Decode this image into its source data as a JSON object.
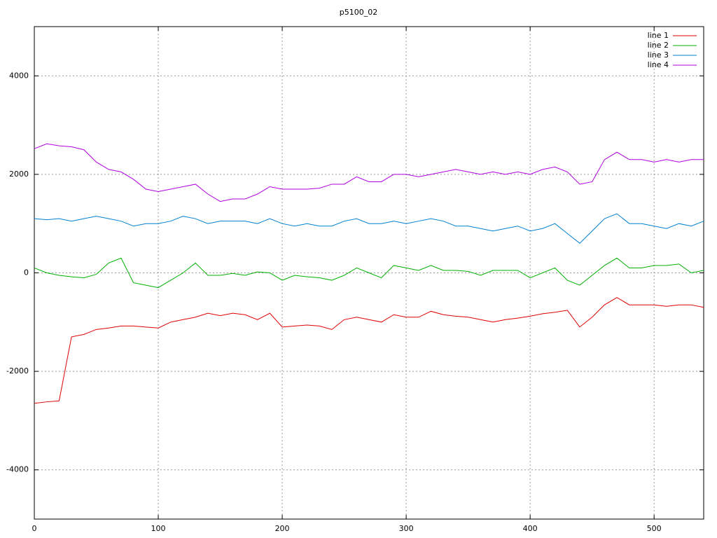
{
  "chart_data": {
    "type": "line",
    "title": "p5100_02",
    "x": [
      0,
      10,
      20,
      30,
      40,
      50,
      60,
      70,
      80,
      90,
      100,
      110,
      120,
      130,
      140,
      150,
      160,
      170,
      180,
      190,
      200,
      210,
      220,
      230,
      240,
      250,
      260,
      270,
      280,
      290,
      300,
      310,
      320,
      330,
      340,
      350,
      360,
      370,
      380,
      390,
      400,
      410,
      420,
      430,
      440,
      450,
      460,
      470,
      480,
      490,
      500,
      510,
      520,
      530,
      540
    ],
    "series": [
      {
        "name": "line 1",
        "color": "#e00000",
        "values": [
          -2650,
          -2620,
          -2600,
          -1300,
          -1250,
          -1150,
          -1120,
          -1080,
          -1080,
          -1100,
          -1120,
          -1000,
          -950,
          -900,
          -820,
          -870,
          -820,
          -850,
          -950,
          -820,
          -1100,
          -1080,
          -1060,
          -1080,
          -1150,
          -950,
          -900,
          -950,
          -1000,
          -850,
          -900,
          -900,
          -780,
          -850,
          -880,
          -900,
          -950,
          -1000,
          -950,
          -920,
          -880,
          -830,
          -800,
          -760,
          -1100,
          -900,
          -650,
          -500,
          -650,
          -650,
          -650,
          -680,
          -650,
          -650,
          -700
        ]
      },
      {
        "name": "line 2",
        "color": "#00b000",
        "values": [
          100,
          0,
          -50,
          -80,
          -100,
          -30,
          200,
          300,
          -200,
          -250,
          -300,
          -150,
          0,
          200,
          -50,
          -50,
          -10,
          -50,
          20,
          0,
          -150,
          -50,
          -80,
          -100,
          -150,
          -50,
          100,
          0,
          -100,
          150,
          100,
          50,
          150,
          50,
          50,
          30,
          -50,
          50,
          50,
          50,
          -100,
          0,
          100,
          -150,
          -250,
          -50,
          150,
          300,
          100,
          100,
          150,
          150,
          180,
          0,
          50
        ]
      },
      {
        "name": "line 3",
        "color": "#0080d0",
        "values": [
          1100,
          1080,
          1100,
          1050,
          1100,
          1150,
          1100,
          1050,
          950,
          1000,
          1000,
          1050,
          1150,
          1100,
          1000,
          1050,
          1050,
          1050,
          1000,
          1100,
          1000,
          950,
          1000,
          950,
          950,
          1050,
          1100,
          1000,
          1000,
          1050,
          1000,
          1050,
          1100,
          1050,
          950,
          950,
          900,
          850,
          900,
          950,
          850,
          900,
          1000,
          800,
          600,
          850,
          1100,
          1200,
          1000,
          1000,
          950,
          900,
          1000,
          950,
          1050
        ]
      },
      {
        "name": "line 4",
        "color": "#b000e0",
        "values": [
          2520,
          2620,
          2580,
          2560,
          2500,
          2250,
          2100,
          2050,
          1900,
          1700,
          1650,
          1700,
          1750,
          1800,
          1600,
          1450,
          1500,
          1500,
          1600,
          1750,
          1700,
          1700,
          1700,
          1720,
          1800,
          1800,
          1950,
          1850,
          1850,
          2000,
          2000,
          1950,
          2000,
          2050,
          2100,
          2050,
          2000,
          2050,
          2000,
          2050,
          2000,
          2100,
          2150,
          2050,
          1800,
          1850,
          2300,
          2450,
          2300,
          2300,
          2250,
          2300,
          2250,
          2300,
          2300
        ]
      }
    ],
    "xlim": [
      0,
      540
    ],
    "ylim": [
      -5000,
      5000
    ],
    "xticks": [
      0,
      100,
      200,
      300,
      400,
      500
    ],
    "yticks": [
      -4000,
      -2000,
      0,
      2000,
      4000
    ],
    "grid": true,
    "legend": "top-right"
  }
}
